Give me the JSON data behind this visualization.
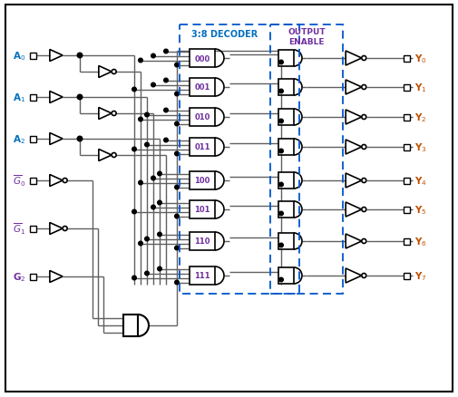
{
  "bg_color": "#ffffff",
  "label_color_A": "#0070C0",
  "label_color_G": "#7030A0",
  "label_color_Y": "#C05000",
  "label_color_decoder": "#0070C0",
  "label_color_output_enable": "#7030A0",
  "decoder_num_color": "#7030A0",
  "line_color": "#606060",
  "gate_color": "#000000",
  "decoder_labels": [
    "000",
    "001",
    "010",
    "011",
    "100",
    "101",
    "110",
    "111"
  ],
  "y_labels": [
    "Y$_0$",
    "Y$_1$",
    "Y$_2$",
    "Y$_3$",
    "Y$_4$",
    "Y$_5$",
    "Y$_6$",
    "Y$_7$"
  ]
}
